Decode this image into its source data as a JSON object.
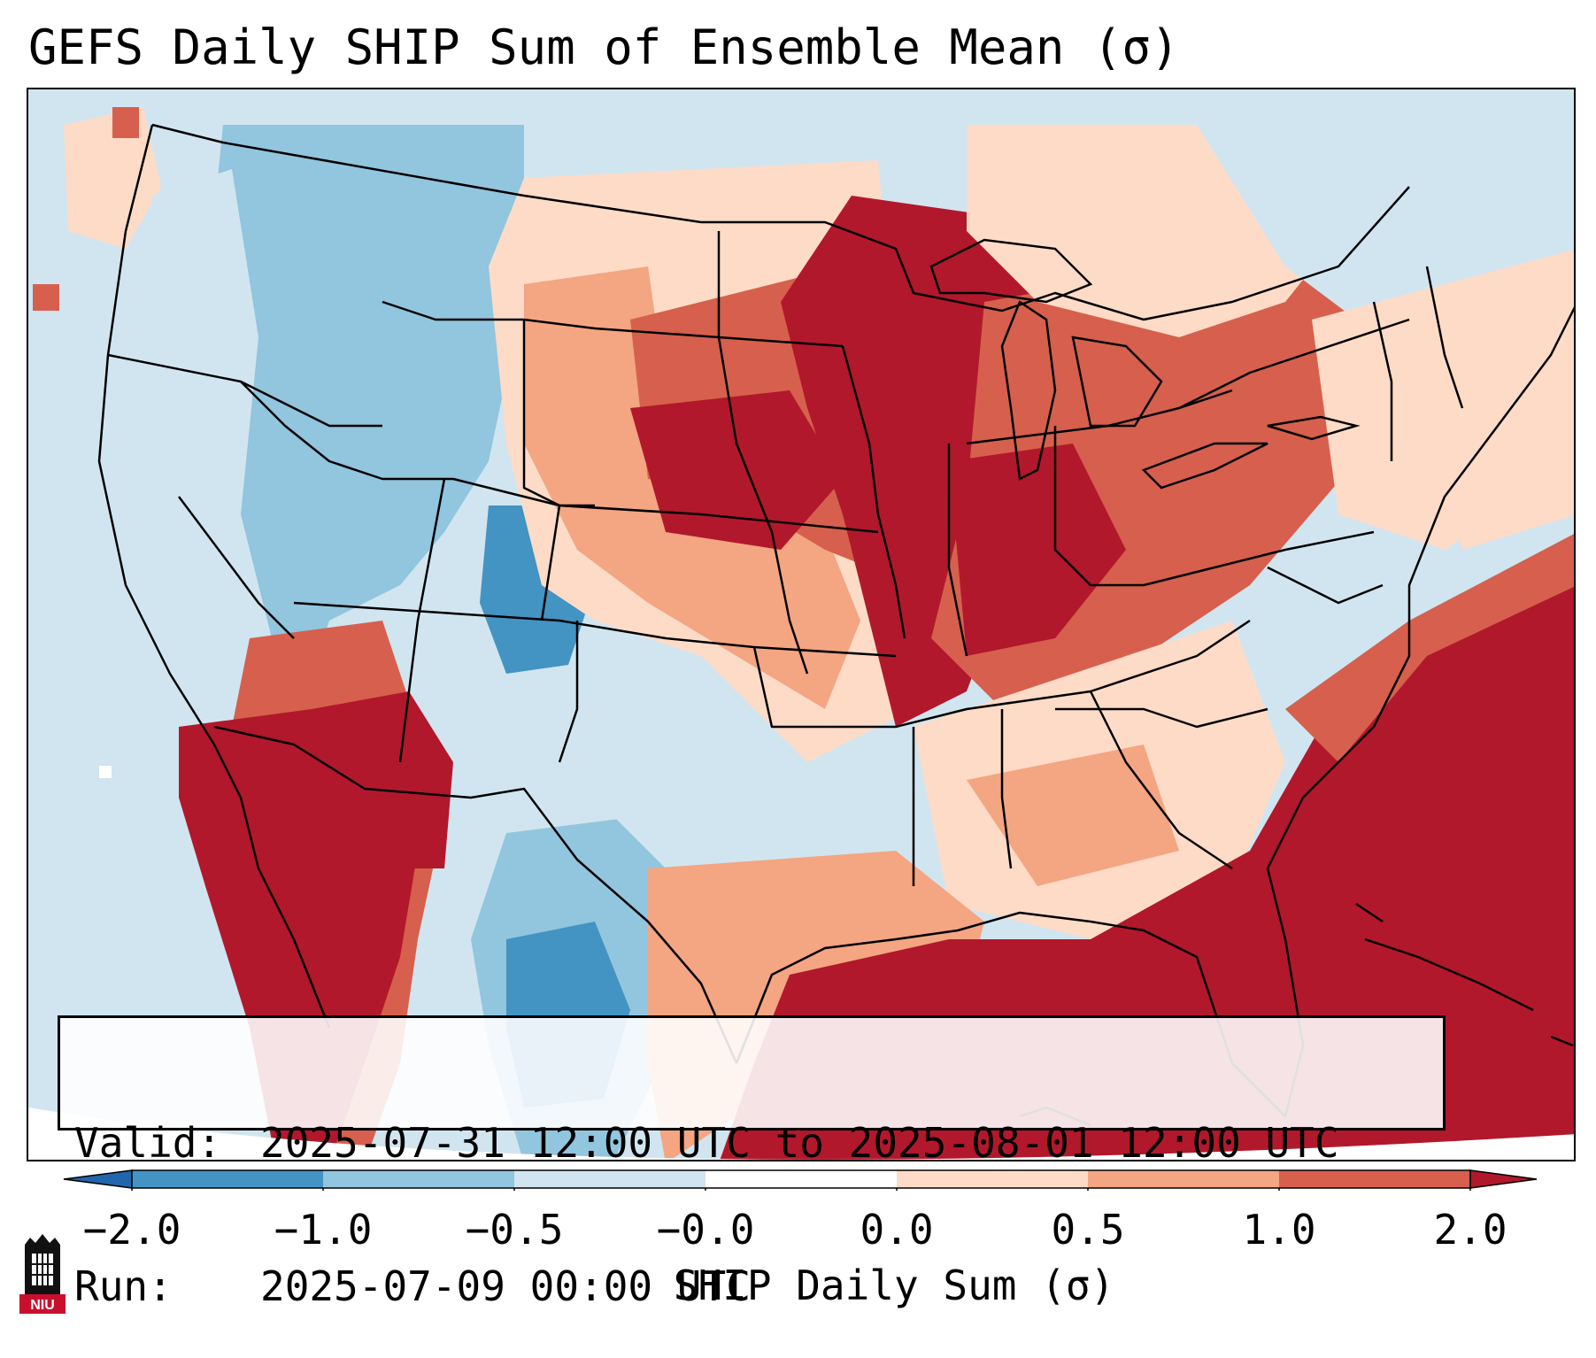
{
  "title": "GEFS Daily SHIP Sum of Ensemble Mean (σ)",
  "info": {
    "valid_label": "Valid:",
    "valid_value": "2025-07-31 12:00 UTC to 2025-08-01 12:00 UTC",
    "run_label": "Run:",
    "run_value": "2025-07-09 00:00 UTC"
  },
  "colorbar": {
    "label": "SHIP Daily Sum (σ)",
    "ticks": [
      "−2.0",
      "−1.0",
      "−0.5",
      "−0.0",
      "0.0",
      "0.5",
      "1.0",
      "2.0"
    ],
    "colors": [
      "#4393c3",
      "#92c5de",
      "#d1e5f0",
      "#ffffff",
      "#fddbc7",
      "#f4a582",
      "#d6604d",
      "#b2182b"
    ],
    "extend": "both",
    "under_color": "#2166ac",
    "over_color": "#b2182b"
  },
  "palette": {
    "ocean_neutral": "#d1e5f0",
    "very_high": "#b2182b",
    "high": "#d6604d",
    "moderate": "#f4a582",
    "slight": "#fddbc7",
    "low": "#92c5de",
    "very_low": "#4393c3"
  },
  "logo": {
    "text": "NIU",
    "color": "#c8102e"
  }
}
